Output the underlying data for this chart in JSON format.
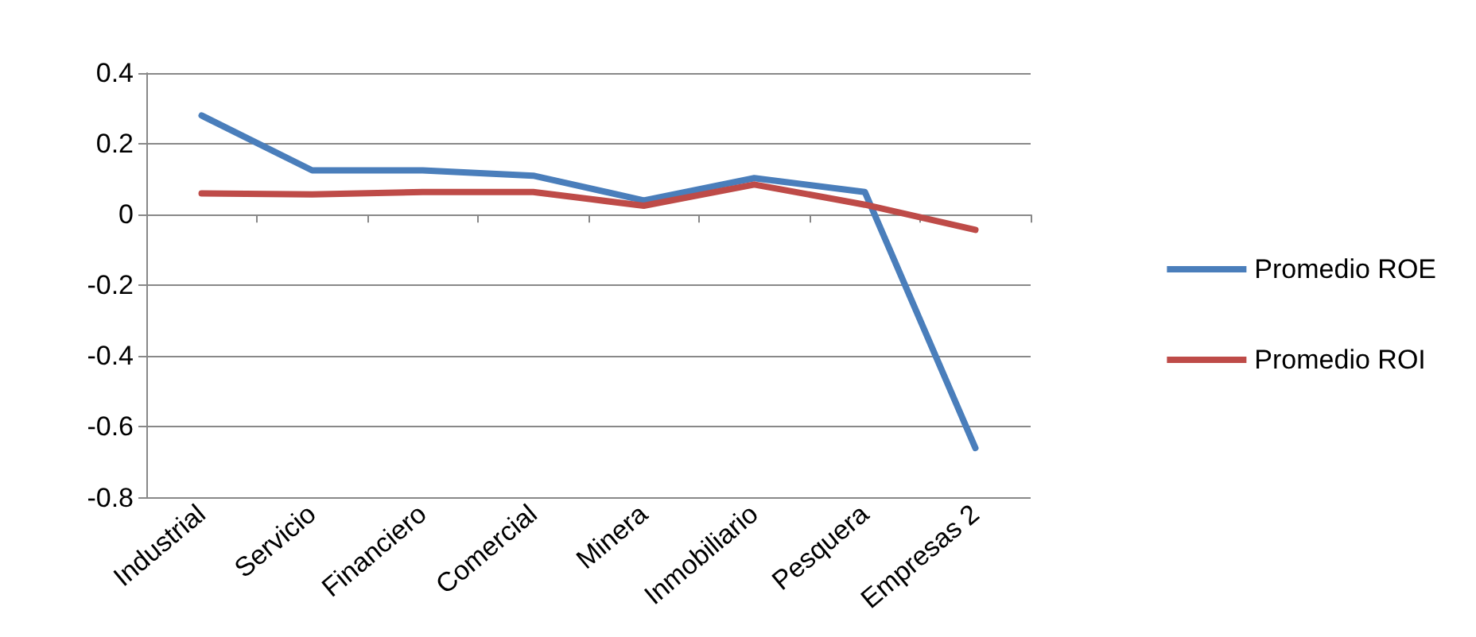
{
  "chart_data": {
    "type": "line",
    "categories": [
      "Industrial",
      "Servicio",
      "Financiero",
      "Comercial",
      "Minera",
      "Inmobiliario",
      "Pesquera",
      "Empresas 2"
    ],
    "series": [
      {
        "name": "Promedio ROE",
        "color": "#4a7ebb",
        "values": [
          0.28,
          0.125,
          0.125,
          0.11,
          0.04,
          0.103,
          0.064,
          -0.66
        ]
      },
      {
        "name": "Promedio ROI",
        "color": "#be4b48",
        "values": [
          0.06,
          0.057,
          0.064,
          0.064,
          0.025,
          0.085,
          0.028,
          -0.043
        ]
      }
    ],
    "ylim": [
      -0.8,
      0.4
    ],
    "yticks": [
      -0.8,
      -0.6,
      -0.4,
      -0.2,
      0,
      0.2,
      0.4
    ],
    "grid": "y",
    "legend": "right",
    "marker": "none",
    "line_style": "solid"
  }
}
